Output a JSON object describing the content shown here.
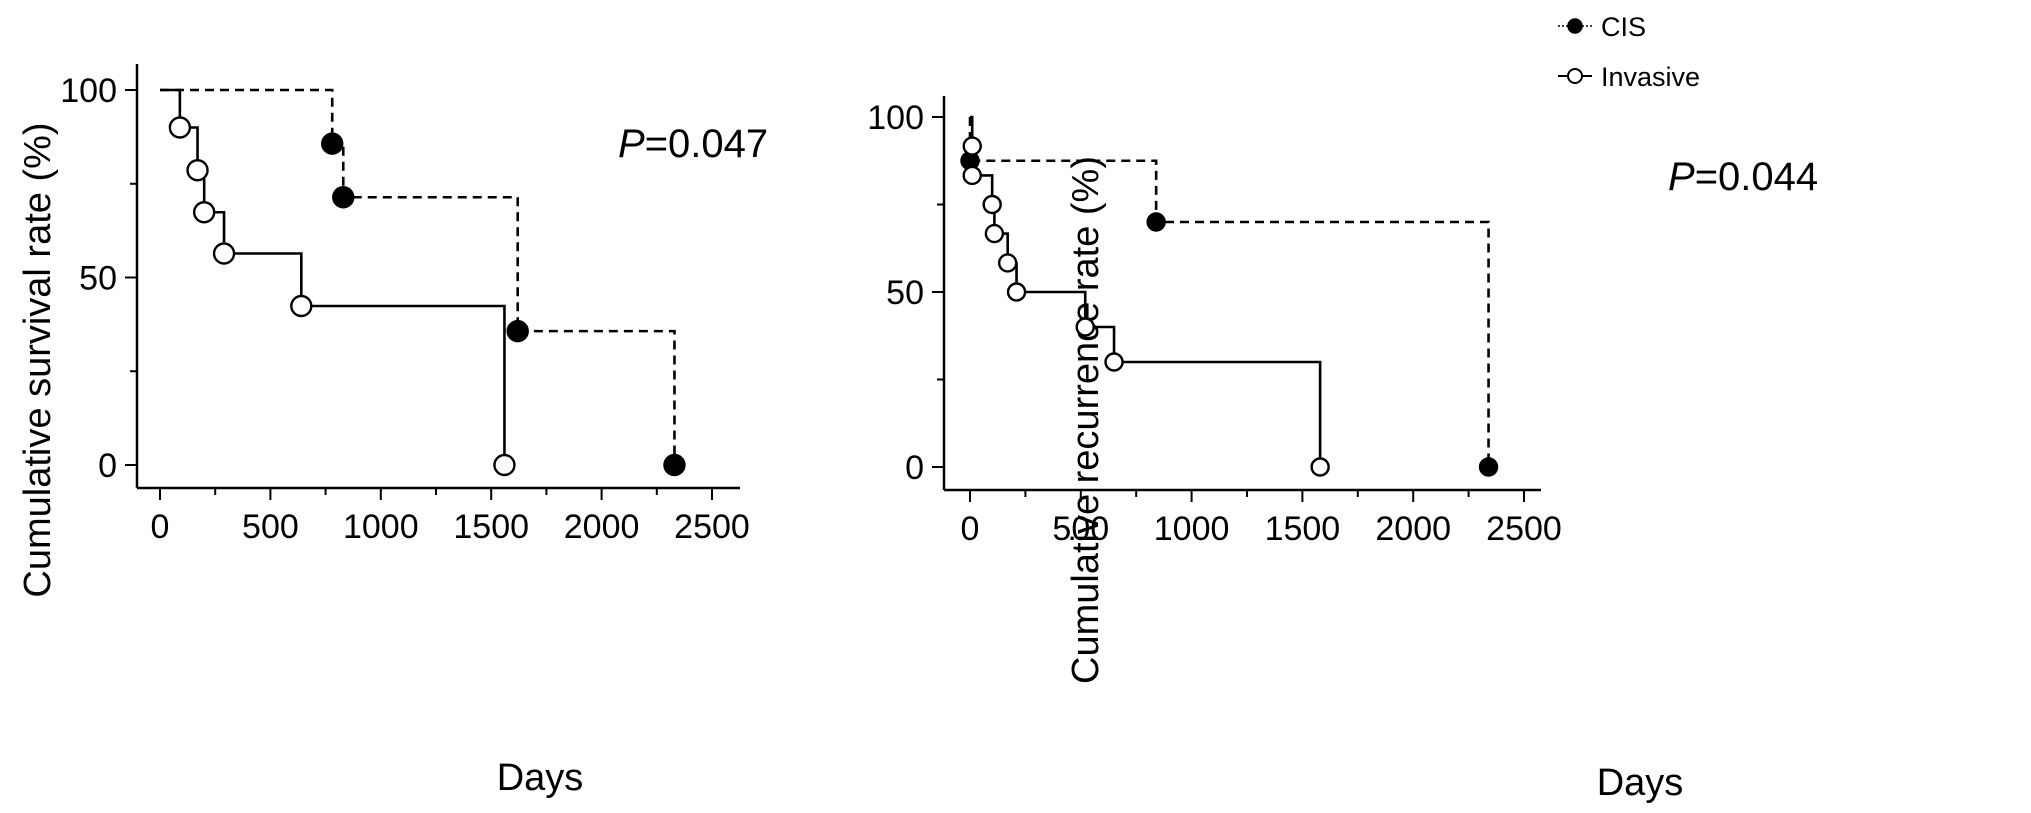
{
  "legend": {
    "items": [
      {
        "label": "CIS",
        "marker": "filled-circle",
        "line": "dashed"
      },
      {
        "label": "Invasive",
        "marker": "open-circle",
        "line": "solid"
      }
    ]
  },
  "chart_data": [
    {
      "type": "line",
      "subtype": "kaplan-meier-step",
      "xlabel": "Days",
      "ylabel": "Cumulative survival rate (%)",
      "annotation": {
        "italic": "P",
        "rest": "=0.047"
      },
      "xlim": [
        -50,
        2600
      ],
      "ylim": [
        -5,
        105
      ],
      "xticks": [
        0,
        500,
        1000,
        1500,
        2000,
        2500
      ],
      "yticks": [
        0,
        50,
        100
      ],
      "grid": false,
      "series": [
        {
          "name": "CIS",
          "style": "dashed",
          "marker": "filled",
          "steps": [
            [
              0,
              100
            ],
            [
              780,
              85.7
            ],
            [
              830,
              71.4
            ],
            [
              1620,
              35.7
            ],
            [
              2330,
              0
            ]
          ],
          "points": [
            [
              780,
              85.7
            ],
            [
              830,
              71.4
            ],
            [
              1620,
              35.7
            ],
            [
              2330,
              0
            ]
          ]
        },
        {
          "name": "Invasive",
          "style": "solid",
          "marker": "open",
          "steps": [
            [
              0,
              100
            ],
            [
              90,
              90
            ],
            [
              170,
              78.6
            ],
            [
              200,
              67.4
            ],
            [
              290,
              56.4
            ],
            [
              640,
              42.4
            ],
            [
              1560,
              0
            ]
          ],
          "points": [
            [
              90,
              90
            ],
            [
              170,
              78.6
            ],
            [
              200,
              67.4
            ],
            [
              290,
              56.4
            ],
            [
              640,
              42.4
            ],
            [
              1560,
              0
            ]
          ]
        }
      ]
    },
    {
      "type": "line",
      "subtype": "kaplan-meier-step",
      "xlabel": "Days",
      "ylabel": "Cumulative recurrence  rate (%)",
      "annotation": {
        "italic": "P",
        "rest": "=0.044"
      },
      "xlim": [
        -20,
        2600
      ],
      "ylim": [
        -5,
        105
      ],
      "xticks": [
        0,
        500,
        1000,
        1500,
        2000,
        2500
      ],
      "yticks": [
        0,
        50,
        100
      ],
      "grid": false,
      "series": [
        {
          "name": "CIS",
          "style": "dashed",
          "marker": "filled",
          "steps": [
            [
              0,
              100
            ],
            [
              0,
              87.5
            ],
            [
              840,
              70
            ],
            [
              2340,
              0
            ]
          ],
          "points": [
            [
              0,
              87.5
            ],
            [
              840,
              70
            ],
            [
              2340,
              0
            ]
          ]
        },
        {
          "name": "Invasive",
          "style": "solid",
          "marker": "open",
          "steps": [
            [
              0,
              100
            ],
            [
              10,
              91.7
            ],
            [
              10,
              83.3
            ],
            [
              100,
              75
            ],
            [
              110,
              66.7
            ],
            [
              170,
              58.3
            ],
            [
              210,
              50
            ],
            [
              520,
              40
            ],
            [
              650,
              30
            ],
            [
              1580,
              0
            ]
          ],
          "points": [
            [
              10,
              91.7
            ],
            [
              10,
              83.3
            ],
            [
              100,
              75
            ],
            [
              110,
              66.7
            ],
            [
              170,
              58.3
            ],
            [
              210,
              50
            ],
            [
              520,
              40
            ],
            [
              650,
              30
            ],
            [
              1580,
              0
            ]
          ]
        }
      ]
    }
  ]
}
